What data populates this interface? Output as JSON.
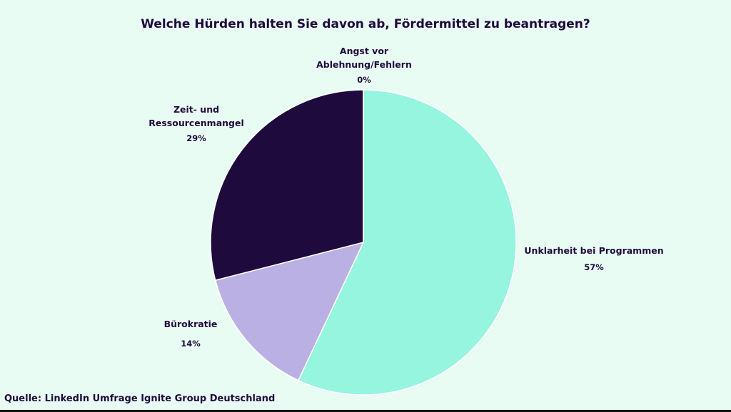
{
  "chart_data": {
    "type": "pie",
    "title": "Welche Hürden halten Sie davon ab, Fördermittel zu beantragen?",
    "categories": [
      "Unklarheit bei Programmen",
      "Bürokratie",
      "Zeit- und Ressourcenmangel",
      "Angst vor Ablehnung/Fehlern"
    ],
    "values": [
      57,
      14,
      29,
      0
    ],
    "value_labels": [
      "57%",
      "14%",
      "29%",
      "0%"
    ],
    "colors": [
      "#95f5df",
      "#bbb0e3",
      "#1f0a3d",
      "#5a4a8a"
    ]
  },
  "source": "Quelle: LinkedIn Umfrage Ignite Group Deutschland"
}
